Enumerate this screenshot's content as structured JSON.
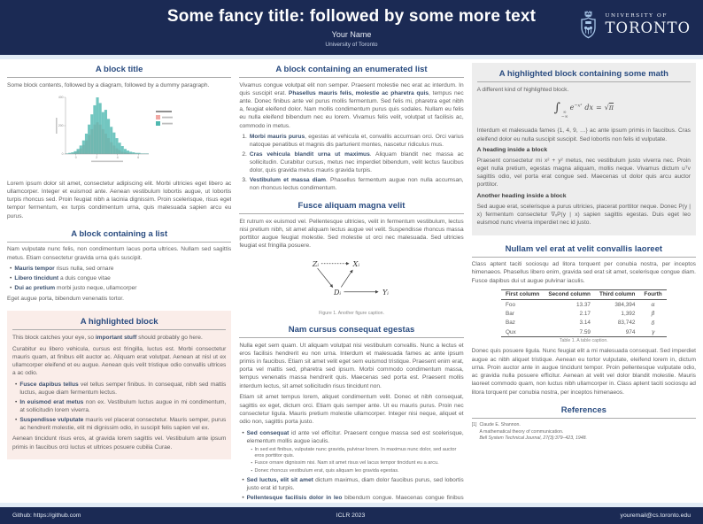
{
  "header": {
    "title": "Some fancy title: followed by some more text",
    "author": "Your Name",
    "institution": "University of Toronto",
    "logo": {
      "line1": "UNIVERSITY OF",
      "line2": "TORONTO"
    }
  },
  "footer": {
    "left": "Github: https://github.com",
    "center": "ICLR 2023",
    "right": "youremail@cs.toronto.edu"
  },
  "colors": {
    "header_navy": "#1B2A54",
    "block_title_blue": "#2A4C80",
    "strip_light_blue": "#E2ECF6",
    "highlight_pink_bg": "#FAEDE9",
    "highlight_gray_bg": "#EDEDED",
    "hist_teal": "#4FB8B0",
    "hist_pink": "#F2A8A3"
  },
  "chart_data": {
    "type": "histogram",
    "bins": 30,
    "series": [
      {
        "name": "pink-series",
        "color": "#F2A8A3",
        "opacity": 0.8,
        "values": [
          0,
          0,
          1,
          3,
          6,
          10,
          16,
          24,
          34,
          44,
          52,
          56,
          52,
          44,
          36,
          28,
          21,
          15,
          10,
          7,
          4,
          3,
          2,
          1,
          1,
          0,
          0,
          0,
          0,
          0
        ]
      },
      {
        "name": "teal-series",
        "color": "#4FB8B0",
        "opacity": 0.8,
        "values": [
          1,
          2,
          3,
          5,
          9,
          15,
          24,
          36,
          52,
          70,
          86,
          100,
          90,
          74,
          78,
          62,
          48,
          38,
          28,
          20,
          14,
          9,
          6,
          4,
          3,
          2,
          2,
          1,
          1,
          1
        ]
      }
    ],
    "yticks": [
      "0",
      "200",
      "400"
    ],
    "xticks": [
      "0",
      "2",
      "4",
      "6"
    ],
    "ylim_relative_pct": [
      0,
      100
    ],
    "legend_position": "right",
    "tick_and_legend_text_estimated": true
  },
  "left": {
    "block1": {
      "title": "A block title",
      "p1": "Some block contents, followed by a diagram, followed by a dummy paragraph.",
      "p2": "Lorem ipsum dolor sit amet, consectetur adipiscing elit. Morbi ultricies eget libero ac ullamcorper. Integer et euismod ante. Aenean vestibulum lobortis augue, ut lobortis turpis rhoncus sed. Proin feugiat nibh a lacinia dignissim. Proin scelerisque, risus eget tempor fermentum, ex turpis condimentum urna, quis malesuada sapien arcu eu purus."
    },
    "block2": {
      "title": "A block containing a list",
      "p1": "Nam vulputate nunc felis, non condimentum lacus porta ultrices. Nullam sed sagittis metus. Etiam consectetur gravida urna quis suscipit.",
      "items": [
        {
          "lead": "Mauris tempor",
          "rest": " risus nulla, sed ornare"
        },
        {
          "lead": "Libero tincidunt",
          "rest": " a duis congue vitae"
        },
        {
          "lead": "Dui ac pretium",
          "rest": " morbi justo neque, ullamcorper"
        }
      ],
      "p2": "Eget augue porta, bibendum venenatis tortor."
    },
    "block3": {
      "title": "A highlighted block",
      "p1": {
        "pre": "This block catches your eye, so ",
        "bold": "important stuff",
        "post": " should probably go here."
      },
      "p2": "Curabitur eu libero vehicula, cursus est fringilla, luctus est. Morbi consectetur mauris quam, at finibus elit auctor ac. Aliquam erat volutpat. Aenean at nisl ut ex ullamcorper eleifend et eu augue. Aenean quis velit tristique odio convallis ultrices a ac odio.",
      "items": [
        {
          "lead": "Fusce dapibus tellus",
          "rest": " vel tellus semper finibus. In consequat, nibh sed mattis luctus, augue diam fermentum lectus."
        },
        {
          "lead": "In euismod erat metus",
          "rest": " non ex. Vestibulum luctus augue in mi condimentum, at sollicitudin lorem viverra."
        },
        {
          "lead": "Suspendisse vulputate",
          "rest": " mauris vel placerat consectetur. Mauris semper, purus ac hendrerit molestie, elit mi dignissim odio, in suscipit felis sapien vel ex."
        }
      ],
      "p3": "Aenean tincidunt risus eros, at gravida lorem sagittis vel. Vestibulum ante ipsum primis in faucibus orci luctus et ultrices posuere cubilia Curae."
    }
  },
  "middle": {
    "block1": {
      "title": "A block containing an enumerated list",
      "p1": {
        "pre": "Vivamus congue volutpat elit non semper. Praesent molestie nec erat ac interdum. In quis suscipit erat. ",
        "bold": "Phasellus mauris felis, molestie ac pharetra quis",
        "post": ", tempus nec ante. Donec finibus ante vel purus mollis fermentum. Sed felis mi, pharetra eget nibh a, feugiat eleifend dolor. Nam mollis condimentum purus quis sodales. Nullam eu felis eu nulla eleifend bibendum nec eu lorem. Vivamus felis velit, volutpat ut facilisis ac, commodo in metus."
      },
      "items": [
        {
          "n": "1.",
          "lead": "Morbi mauris purus",
          "rest": ", egestas at vehicula et, convallis accumsan orci. Orci varius natoque penatibus et magnis dis parturient montes, nascetur ridiculus mus."
        },
        {
          "n": "2.",
          "lead": "Cras vehicula blandit urna ut maximus",
          "rest": ". Aliquam blandit nec massa ac sollicitudin. Curabitur cursus, metus nec imperdiet bibendum, velit lectus faucibus dolor, quis gravida metus mauris gravida turpis."
        },
        {
          "n": "3.",
          "lead": "Vestibulum et massa diam",
          "rest": ". Phasellus fermentum augue non nulla accumsan, non rhoncus lectus condimentum."
        }
      ]
    },
    "block2": {
      "title": "Fusce aliquam magna velit",
      "p1": "Et rutrum ex euismod vel. Pellentesque ultricies, velit in fermentum vestibulum, lectus nisi pretium nibh, sit amet aliquam lectus augue vel velit. Suspendisse rhoncus massa porttitor augue feugiat molestie. Sed molestie ut orci nec malesuada. Sed ultricies feugiat est fringilla posuere.",
      "figure": {
        "nodes": {
          "z": "Zᵢ",
          "x": "Xᵢ",
          "d": "Dᵢ",
          "y": "Yᵢ"
        },
        "edges": [
          {
            "from": "Zᵢ",
            "to": "Xᵢ",
            "style": "dotted"
          },
          {
            "from": "Zᵢ",
            "to": "Dᵢ",
            "style": "solid"
          },
          {
            "from": "Dᵢ",
            "to": "Xᵢ",
            "style": "solid"
          },
          {
            "from": "Dᵢ",
            "to": "Yᵢ",
            "style": "solid"
          }
        ],
        "caption": "Figure 1. Another figure caption."
      }
    },
    "block3": {
      "title": "Nam cursus consequat egestas",
      "p1": "Nulla eget sem quam. Ut aliquam volutpat nisi vestibulum convallis. Nunc a lectus et eros facilisis hendrerit eu non urna. Interdum et malesuada fames ac ante ipsum primis in faucibus. Etiam sit amet velit eget sem euismod tristique. Praesent enim erat, porta vel mattis sed, pharetra sed ipsum. Morbi commodo condimentum massa, tempus venenatis massa hendrerit quis. Maecenas sed porta est. Praesent mollis interdum lectus, sit amet sollicitudin risus tincidunt non.",
      "p2": "Etiam sit amet tempus lorem, aliquet condimentum velit. Donec et nibh consequat, sagittis ex eget, dictum orci. Etiam quis semper ante. Ut eu mauris purus. Proin nec consectetur ligula. Mauris pretium molestie ullamcorper. Integer nisi neque, aliquet et odio non, sagittis porta justo.",
      "items": [
        {
          "lead": "Sed consequat",
          "rest": " id ante vel efficitur. Praesent congue massa sed est scelerisque, elementum mollis augue iaculis.",
          "subs": [
            "In sed est finibus, vulputate nunc gravida, pulvinar lorem. In maximus nunc dolor, sed auctor eros porttitor quis.",
            "Fusce ornare dignissim nisi. Nam sit amet risus vel lacus tempor tincidunt eu a arcu.",
            "Donec rhoncus vestibulum erat, quis aliquam leo gravida egestas."
          ]
        },
        {
          "lead": "Sed luctus, elit sit amet",
          "rest": " dictum maximus, diam dolor faucibus purus, sed lobortis justo erat id turpis.",
          "subs": []
        },
        {
          "lead": "Pellentesque facilisis dolor in leo",
          "rest": " bibendum congue. Maecenas congue finibus justo, vitae eleifend urna facilisis at.",
          "subs": []
        }
      ]
    }
  },
  "right": {
    "block1": {
      "title": "A highlighted block containing some math",
      "p1": "A different kind of highlighted block.",
      "formula": {
        "integral": "∫",
        "lim_hi": "∞",
        "lim_lo": "−∞",
        "base": "e",
        "exponent": "−x²",
        "differential": "dx",
        "equals": "=",
        "radical": "√",
        "radicand": "π"
      },
      "p2": "Interdum et malesuada fames {1, 4, 9, …} ac ante ipsum primis in faucibus. Cras eleifend dolor eu nulla suscipit suscipit. Sed lobortis non felis id vulputate.",
      "h1": "A heading inside a block",
      "p3": "Praesent consectetur mi x² + y² metus, nec vestibulum justo viverra nec. Proin eget nulla pretium, egestas magna aliquam, mollis neque. Vivamus dictum uᵀv sagittis odio, vel porta erat congue sed. Maecenas ut dolor quis arcu auctor porttitor.",
      "h2": "Another heading inside a block",
      "p4": "Sed augue erat, scelerisque a purus ultricies, placerat porttitor neque. Donec P(y | x) fermentum consectetur ∇ₓP(y | x) sapien sagittis egestas. Duis eget leo euismod nunc viverra imperdiet nec id justo."
    },
    "block2": {
      "title": "Nullam vel erat at velit convallis laoreet",
      "p1": "Class aptent taciti sociosqu ad litora torquent per conubia nostra, per inceptos himenaeos. Phasellus libero enim, gravida sed erat sit amet, scelerisque congue diam. Fusce dapibus dui ut augue pulvinar iaculis.",
      "table": {
        "cols": [
          "First column",
          "Second column",
          "Third column",
          "Fourth"
        ],
        "rows": [
          [
            "Foo",
            "13.37",
            "384,394",
            "α"
          ],
          [
            "Bar",
            "2.17",
            "1,392",
            "β"
          ],
          [
            "Baz",
            "3.14",
            "83,742",
            "δ"
          ],
          [
            "Qux",
            "7.59",
            "974",
            "γ"
          ]
        ],
        "caption": "Table 1. A table caption."
      },
      "p2": "Donec quis posuere ligula. Nunc feugiat elit a mi malesuada consequat. Sed imperdiet augue ac nibh aliquet tristique. Aenean eu tortor vulputate, eleifend lorem in, dictum urna. Proin auctor ante in augue tincidunt tempor. Proin pellentesque vulputate odio, ac gravida nulla posuere efficitur. Aenean at velit vel dolor blandit molestie. Mauris laoreet commodo quam, non luctus nibh ullamcorper in. Class aptent taciti sociosqu ad litora torquent per conubia nostra, per inceptos himenaeos."
    },
    "block3": {
      "title": "References",
      "refs": [
        {
          "label": "[1]",
          "line1": "Claude E. Shannon.",
          "line2": "A mathematical theory of communication.",
          "line3": "Bell System Technical Journal, 27(3):379–423, 1948."
        }
      ]
    }
  }
}
